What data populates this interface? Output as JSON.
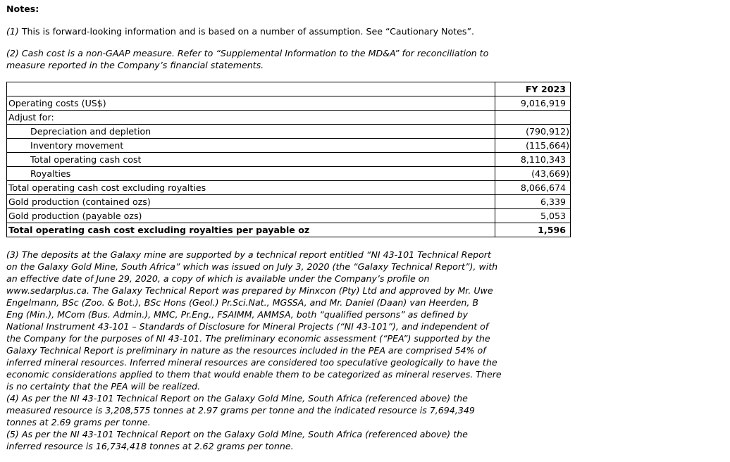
{
  "notes_heading": "Notes:",
  "note1": {
    "num": "(1)",
    "text": " This is forward-looking information and is based on a number of assumption. See “Cautionary Notes”."
  },
  "note2": {
    "lines": [
      "(2) Cash cost is a non-GAAP measure. Refer to “Supplemental Information to the MD&A” for reconciliation to",
      "measure reported in the Company’s financial statements."
    ]
  },
  "table": {
    "header": {
      "label": "",
      "value": "FY 2023"
    },
    "rows": [
      {
        "label": "Operating costs (US$)",
        "value": "9,016,919"
      },
      {
        "label": "Adjust for:",
        "value": ""
      },
      {
        "label": "Depreciation and depletion",
        "value": "(790,912)"
      },
      {
        "label": "Inventory movement",
        "value": "(115,664)"
      },
      {
        "label": "Total operating cash cost",
        "value": "8,110,343"
      },
      {
        "label": "Royalties",
        "value": "(43,669)"
      },
      {
        "label": "Total operating cash cost excluding royalties",
        "value": "8,066,674"
      },
      {
        "label": "Gold production (contained ozs)",
        "value": "6,339"
      },
      {
        "label": "Gold production (payable ozs)",
        "value": "5,053"
      },
      {
        "label": "Total operating cash cost excluding royalties per payable oz",
        "value": "1,596"
      }
    ]
  },
  "note3": {
    "lines": [
      "(3) The deposits at the Galaxy mine are supported by a technical report entitled “NI 43-101 Technical Report",
      "on the Galaxy Gold Mine, South Africa” which was issued on July 3, 2020 (the “Galaxy Technical Report”), with",
      "an effective date of June 29, 2020, a copy of which is available under the Company’s profile on",
      "www.sedarplus.ca. The Galaxy Technical Report was prepared by Minxcon (Pty) Ltd and approved by Mr. Uwe",
      "Engelmann, BSc (Zoo. & Bot.), BSc Hons (Geol.) Pr.Sci.Nat., MGSSA, and Mr. Daniel (Daan) van Heerden, B",
      "Eng (Min.), MCom (Bus. Admin.), MMC, Pr.Eng., FSAIMM, AMMSA, both “qualified persons” as defined by",
      "National Instrument 43-101 – Standards of Disclosure for Mineral Projects (“NI 43-101”), and independent of",
      "the Company for the purposes of NI 43-101. The preliminary economic assessment (“PEA”) supported by the",
      "Galaxy Technical Report is preliminary in nature as the resources included in the PEA are comprised 54% of",
      "inferred mineral resources. Inferred mineral resources are considered too speculative geologically to have the",
      "economic considerations applied to them that would enable them to be categorized as mineral reserves. There",
      "is no certainty that the PEA will be realized."
    ]
  },
  "note4": {
    "lines": [
      "(4) As per the NI 43-101 Technical Report on the Galaxy Gold Mine, South Africa (referenced above) the",
      "measured resource is 3,208,575 tonnes at 2.97 grams per tonne and the indicated resource is 7,694,349",
      "tonnes at 2.69 grams per tonne."
    ]
  },
  "note5": {
    "lines": [
      "(5) As per the NI 43-101 Technical Report on the Galaxy Gold Mine, South Africa (referenced above) the",
      "inferred resource is 16,734,418 tonnes at 2.62 grams per tonne."
    ]
  }
}
